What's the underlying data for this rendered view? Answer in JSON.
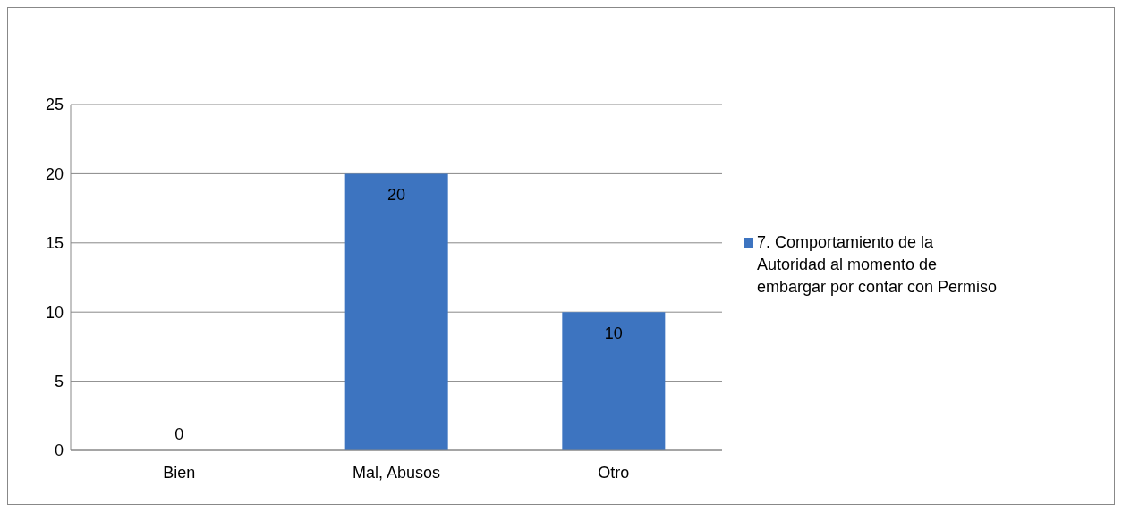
{
  "chart_data": {
    "type": "bar",
    "categories": [
      "Bien",
      "Mal, Abusos",
      "Otro"
    ],
    "series": [
      {
        "name": "7. Comportamiento de la Autoridad al momento de embargar por contar con Permiso",
        "color": "#3d74c0",
        "values": [
          0,
          20,
          10
        ]
      }
    ],
    "ylim": [
      0,
      25
    ],
    "yticks": [
      0,
      5,
      10,
      15,
      20,
      25
    ],
    "grid": "y",
    "legend": "right",
    "data_labels": true
  }
}
